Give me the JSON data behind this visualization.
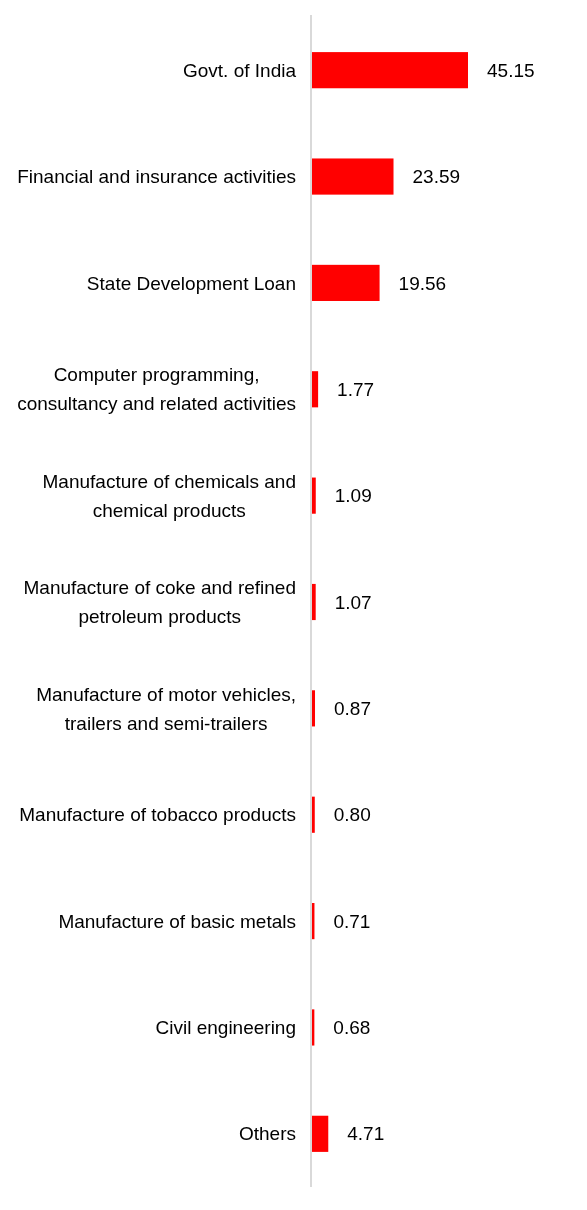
{
  "chart_data": {
    "type": "bar",
    "orientation": "horizontal",
    "categories": [
      "Govt. of India",
      "Financial and insurance activities",
      "State Development Loan",
      "Computer programming, consultancy and related activities",
      "Manufacture of chemicals and chemical products",
      "Manufacture of coke and refined petroleum products",
      "Manufacture of motor vehicles, trailers and semi-trailers",
      "Manufacture of tobacco products",
      "Manufacture of basic metals",
      "Civil engineering",
      "Others"
    ],
    "values": [
      45.15,
      23.59,
      19.56,
      1.77,
      1.09,
      1.07,
      0.87,
      0.8,
      0.71,
      0.68,
      4.71
    ],
    "value_labels": [
      "45.15",
      "23.59",
      "19.56",
      "1.77",
      "1.09",
      "1.07",
      "0.87",
      "0.80",
      "0.71",
      "0.68",
      "4.71"
    ],
    "color": "#ff0000"
  }
}
